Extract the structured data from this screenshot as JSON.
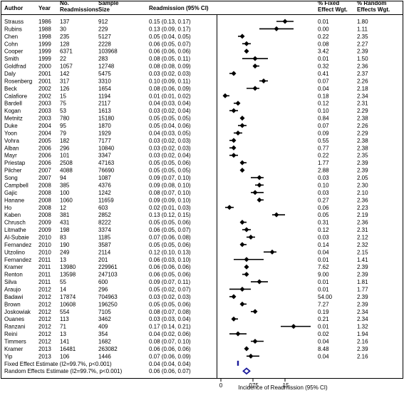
{
  "headers": {
    "author": "Author",
    "year": "Year",
    "readmissions": [
      "No.",
      "Readmissions"
    ],
    "sample": [
      "Sample",
      "Size"
    ],
    "ci": "Readmission (95% CI)",
    "fixed": [
      "% Fixed",
      "Effect Wgt."
    ],
    "random": [
      "% Random",
      "Effects Wgt."
    ]
  },
  "summary_rows": [
    {
      "label": "Fixed Effect Estimate (I2=99.7%, p<0.001)",
      "ci": "0.04 (0.04, 0.04)"
    },
    {
      "label": "Random Effects Estimate (I2=99.7%, p<0.001)",
      "ci": "0.06 (0.06, 0.07)"
    }
  ],
  "chart_data": {
    "type": "forest",
    "xlabel": "Incidence of Readmission (95% CI)",
    "xlim": [
      0,
      0.17
    ],
    "x_ticks": [
      0,
      0.075,
      0.15
    ],
    "x_tick_labels": [
      "0",
      ".075",
      ".15"
    ],
    "studies": [
      {
        "author": "Strauss",
        "year": "1986",
        "readmissions": "137",
        "sample": "912",
        "est": 0.15,
        "lo": 0.13,
        "hi": 0.17,
        "ci": "0.15 (0.13, 0.17)",
        "fixed": "0.01",
        "random": "1.80"
      },
      {
        "author": "Rubins",
        "year": "1988",
        "readmissions": "30",
        "sample": "229",
        "est": 0.13,
        "lo": 0.09,
        "hi": 0.17,
        "ci": "0.13 (0.09, 0.17)",
        "fixed": "0.00",
        "random": "1.11"
      },
      {
        "author": "Chen",
        "year": "1998",
        "readmissions": "235",
        "sample": "5127",
        "est": 0.05,
        "lo": 0.04,
        "hi": 0.05,
        "ci": "0.05 (0.04, 0.05)",
        "fixed": "0.22",
        "random": "2.35"
      },
      {
        "author": "Cohn",
        "year": "1999",
        "readmissions": "128",
        "sample": "2228",
        "est": 0.06,
        "lo": 0.05,
        "hi": 0.07,
        "ci": "0.06 (0.05, 0.07)",
        "fixed": "0.08",
        "random": "2.27"
      },
      {
        "author": "Cooper",
        "year": "1999",
        "readmissions": "6371",
        "sample": "103968",
        "est": 0.06,
        "lo": 0.06,
        "hi": 0.06,
        "ci": "0.06 (0.06, 0.06)",
        "fixed": "3.42",
        "random": "2.39"
      },
      {
        "author": "Smith",
        "year": "1999",
        "readmissions": "22",
        "sample": "283",
        "est": 0.08,
        "lo": 0.05,
        "hi": 0.11,
        "ci": "0.08 (0.05, 0.11)",
        "fixed": "0.01",
        "random": "1.50"
      },
      {
        "author": "Goldfrad",
        "year": "2000",
        "readmissions": "1057",
        "sample": "12748",
        "est": 0.08,
        "lo": 0.08,
        "hi": 0.09,
        "ci": "0.08 (0.08, 0.09)",
        "fixed": "0.32",
        "random": "2.36"
      },
      {
        "author": "Daly",
        "year": "2001",
        "readmissions": "142",
        "sample": "5475",
        "est": 0.03,
        "lo": 0.02,
        "hi": 0.03,
        "ci": "0.03 (0.02, 0.03)",
        "fixed": "0.41",
        "random": "2.37"
      },
      {
        "author": "Rosenberg",
        "year": "2001",
        "readmissions": "317",
        "sample": "3310",
        "est": 0.1,
        "lo": 0.09,
        "hi": 0.11,
        "ci": "0.10 (0.09, 0.11)",
        "fixed": "0.07",
        "random": "2.26"
      },
      {
        "author": "Beck",
        "year": "2002",
        "readmissions": "126",
        "sample": "1654",
        "est": 0.08,
        "lo": 0.06,
        "hi": 0.09,
        "ci": "0.08 (0.06, 0.09)",
        "fixed": "0.04",
        "random": "2.18"
      },
      {
        "author": "Calafiore",
        "year": "2002",
        "readmissions": "15",
        "sample": "1194",
        "est": 0.01,
        "lo": 0.01,
        "hi": 0.02,
        "ci": "0.01 (0.01, 0.02)",
        "fixed": "0.18",
        "random": "2.34"
      },
      {
        "author": "Bardell",
        "year": "2003",
        "readmissions": "75",
        "sample": "2117",
        "est": 0.04,
        "lo": 0.03,
        "hi": 0.04,
        "ci": "0.04 (0.03, 0.04)",
        "fixed": "0.12",
        "random": "2.31"
      },
      {
        "author": "Kogan",
        "year": "2003",
        "readmissions": "53",
        "sample": "1613",
        "est": 0.03,
        "lo": 0.02,
        "hi": 0.04,
        "ci": "0.03 (0.02, 0.04)",
        "fixed": "0.10",
        "random": "2.29"
      },
      {
        "author": "Metnitz",
        "year": "2003",
        "readmissions": "780",
        "sample": "15180",
        "est": 0.05,
        "lo": 0.05,
        "hi": 0.05,
        "ci": "0.05 (0.05, 0.05)",
        "fixed": "0.84",
        "random": "2.38"
      },
      {
        "author": "Duke",
        "year": "2004",
        "readmissions": "95",
        "sample": "1870",
        "est": 0.05,
        "lo": 0.04,
        "hi": 0.06,
        "ci": "0.05 (0.04, 0.06)",
        "fixed": "0.07",
        "random": "2.26"
      },
      {
        "author": "Yoon",
        "year": "2004",
        "readmissions": "79",
        "sample": "1929",
        "est": 0.04,
        "lo": 0.03,
        "hi": 0.05,
        "ci": "0.04 (0.03, 0.05)",
        "fixed": "0.09",
        "random": "2.29"
      },
      {
        "author": "Vohra",
        "year": "2005",
        "readmissions": "182",
        "sample": "7177",
        "est": 0.03,
        "lo": 0.02,
        "hi": 0.03,
        "ci": "0.03 (0.02, 0.03)",
        "fixed": "0.55",
        "random": "2.38"
      },
      {
        "author": "Alban",
        "year": "2006",
        "readmissions": "296",
        "sample": "10840",
        "est": 0.03,
        "lo": 0.02,
        "hi": 0.03,
        "ci": "0.03 (0.02, 0.03)",
        "fixed": "0.77",
        "random": "2.38"
      },
      {
        "author": "Mayr",
        "year": "2006",
        "readmissions": "101",
        "sample": "3347",
        "est": 0.03,
        "lo": 0.02,
        "hi": 0.04,
        "ci": "0.03 (0.02, 0.04)",
        "fixed": "0.22",
        "random": "2.35"
      },
      {
        "author": "Priestap",
        "year": "2006",
        "readmissions": "2508",
        "sample": "47163",
        "est": 0.05,
        "lo": 0.05,
        "hi": 0.06,
        "ci": "0.05 (0.05, 0.06)",
        "fixed": "1.77",
        "random": "2.39"
      },
      {
        "author": "Pilcher",
        "year": "2007",
        "readmissions": "4088",
        "sample": "76690",
        "est": 0.05,
        "lo": 0.05,
        "hi": 0.05,
        "ci": "0.05 (0.05, 0.05)",
        "fixed": "2.88",
        "random": "2.39"
      },
      {
        "author": "Song",
        "year": "2007",
        "readmissions": "94",
        "sample": "1087",
        "est": 0.09,
        "lo": 0.07,
        "hi": 0.1,
        "ci": "0.09 (0.07, 0.10)",
        "fixed": "0.03",
        "random": "2.05"
      },
      {
        "author": "Campbell",
        "year": "2008",
        "readmissions": "385",
        "sample": "4376",
        "est": 0.09,
        "lo": 0.08,
        "hi": 0.1,
        "ci": "0.09 (0.08, 0.10)",
        "fixed": "0.10",
        "random": "2.30"
      },
      {
        "author": "Gajic",
        "year": "2008",
        "readmissions": "100",
        "sample": "1242",
        "est": 0.08,
        "lo": 0.07,
        "hi": 0.1,
        "ci": "0.08 (0.07, 0.10)",
        "fixed": "0.03",
        "random": "2.10"
      },
      {
        "author": "Hanane",
        "year": "2008",
        "readmissions": "1060",
        "sample": "11659",
        "est": 0.09,
        "lo": 0.09,
        "hi": 0.1,
        "ci": "0.09 (0.09, 0.10)",
        "fixed": "0.27",
        "random": "2.36"
      },
      {
        "author": "Ho",
        "year": "2008",
        "readmissions": "12",
        "sample": "603",
        "est": 0.02,
        "lo": 0.01,
        "hi": 0.03,
        "ci": "0.02 (0.01, 0.03)",
        "fixed": "0.06",
        "random": "2.23"
      },
      {
        "author": "Kaben",
        "year": "2008",
        "readmissions": "381",
        "sample": "2852",
        "est": 0.13,
        "lo": 0.12,
        "hi": 0.15,
        "ci": "0.13 (0.12, 0.15)",
        "fixed": "0.05",
        "random": "2.19"
      },
      {
        "author": "Chrusch",
        "year": "2009",
        "readmissions": "431",
        "sample": "8222",
        "est": 0.05,
        "lo": 0.05,
        "hi": 0.06,
        "ci": "0.05 (0.05, 0.06)",
        "fixed": "0.31",
        "random": "2.36"
      },
      {
        "author": "Litmathe",
        "year": "2009",
        "readmissions": "198",
        "sample": "3374",
        "est": 0.06,
        "lo": 0.05,
        "hi": 0.07,
        "ci": "0.06 (0.05, 0.07)",
        "fixed": "0.12",
        "random": "2.31"
      },
      {
        "author": "Al-Subaie",
        "year": "2010",
        "readmissions": "83",
        "sample": "1185",
        "est": 0.07,
        "lo": 0.06,
        "hi": 0.08,
        "ci": "0.07 (0.06, 0.08)",
        "fixed": "0.03",
        "random": "2.12"
      },
      {
        "author": "Fernandez",
        "year": "2010",
        "readmissions": "190",
        "sample": "3587",
        "est": 0.05,
        "lo": 0.05,
        "hi": 0.06,
        "ci": "0.05 (0.05, 0.06)",
        "fixed": "0.14",
        "random": "2.32"
      },
      {
        "author": "Utzolino",
        "year": "2010",
        "readmissions": "249",
        "sample": "2114",
        "est": 0.12,
        "lo": 0.1,
        "hi": 0.13,
        "ci": "0.12 (0.10, 0.13)",
        "fixed": "0.04",
        "random": "2.15"
      },
      {
        "author": "Fernandez",
        "year": "2011",
        "readmissions": "13",
        "sample": "201",
        "est": 0.06,
        "lo": 0.03,
        "hi": 0.1,
        "ci": "0.06 (0.03, 0.10)",
        "fixed": "0.01",
        "random": "1.41"
      },
      {
        "author": "Kramer",
        "year": "2011",
        "readmissions": "13980",
        "sample": "229961",
        "est": 0.06,
        "lo": 0.06,
        "hi": 0.06,
        "ci": "0.06 (0.06, 0.06)",
        "fixed": "7.62",
        "random": "2.39"
      },
      {
        "author": "Renton",
        "year": "2011",
        "readmissions": "13598",
        "sample": "247103",
        "est": 0.06,
        "lo": 0.05,
        "hi": 0.06,
        "ci": "0.06 (0.05, 0.06)",
        "fixed": "9.00",
        "random": "2.39"
      },
      {
        "author": "Silva",
        "year": "2011",
        "readmissions": "55",
        "sample": "600",
        "est": 0.09,
        "lo": 0.07,
        "hi": 0.11,
        "ci": "0.09 (0.07, 0.11)",
        "fixed": "0.01",
        "random": "1.81"
      },
      {
        "author": "Araujo",
        "year": "2012",
        "readmissions": "14",
        "sample": "296",
        "est": 0.05,
        "lo": 0.02,
        "hi": 0.07,
        "ci": "0.05 (0.02, 0.07)",
        "fixed": "0.01",
        "random": "1.77"
      },
      {
        "author": "Badawi",
        "year": "2012",
        "readmissions": "17874",
        "sample": "704963",
        "est": 0.03,
        "lo": 0.02,
        "hi": 0.03,
        "ci": "0.03 (0.02, 0.03)",
        "fixed": "54.00",
        "random": "2.39"
      },
      {
        "author": "Brown",
        "year": "2012",
        "readmissions": "10608",
        "sample": "196250",
        "est": 0.05,
        "lo": 0.05,
        "hi": 0.06,
        "ci": "0.05 (0.05, 0.06)",
        "fixed": "7.27",
        "random": "2.39"
      },
      {
        "author": "Joskowiak",
        "year": "2012",
        "readmissions": "554",
        "sample": "7105",
        "est": 0.08,
        "lo": 0.07,
        "hi": 0.08,
        "ci": "0.08 (0.07, 0.08)",
        "fixed": "0.19",
        "random": "2.34"
      },
      {
        "author": "Ouanes",
        "year": "2012",
        "readmissions": "113",
        "sample": "3462",
        "est": 0.03,
        "lo": 0.03,
        "hi": 0.04,
        "ci": "0.03 (0.03, 0.04)",
        "fixed": "0.21",
        "random": "2.34"
      },
      {
        "author": "Ranzani",
        "year": "2012",
        "readmissions": "71",
        "sample": "409",
        "est": 0.17,
        "lo": 0.14,
        "hi": 0.21,
        "ci": "0.17 (0.14, 0.21)",
        "fixed": "0.01",
        "random": "1.32"
      },
      {
        "author": "Reini",
        "year": "2012",
        "readmissions": "13",
        "sample": "354",
        "est": 0.04,
        "lo": 0.02,
        "hi": 0.06,
        "ci": "0.04 (0.02, 0.06)",
        "fixed": "0.02",
        "random": "1.94"
      },
      {
        "author": "Timmers",
        "year": "2012",
        "readmissions": "141",
        "sample": "1682",
        "est": 0.08,
        "lo": 0.07,
        "hi": 0.1,
        "ci": "0.08 (0.07, 0.10)",
        "fixed": "0.04",
        "random": "2.16"
      },
      {
        "author": "Kramer",
        "year": "2013",
        "readmissions": "16481",
        "sample": "263082",
        "est": 0.06,
        "lo": 0.06,
        "hi": 0.06,
        "ci": "0.06 (0.06, 0.06)",
        "fixed": "8.48",
        "random": "2.39"
      },
      {
        "author": "Yip",
        "year": "2013",
        "readmissions": "106",
        "sample": "1446",
        "est": 0.07,
        "lo": 0.06,
        "hi": 0.09,
        "ci": "0.07 (0.06, 0.09)",
        "fixed": "0.04",
        "random": "2.16"
      }
    ],
    "summary": [
      {
        "name": "Fixed Effect Estimate",
        "est": 0.04,
        "lo": 0.04,
        "hi": 0.04,
        "marker": "bar"
      },
      {
        "name": "Random Effects Estimate",
        "est": 0.06,
        "lo": 0.06,
        "hi": 0.07,
        "marker": "diamond"
      }
    ],
    "summary_color": "#1a1a9a"
  }
}
